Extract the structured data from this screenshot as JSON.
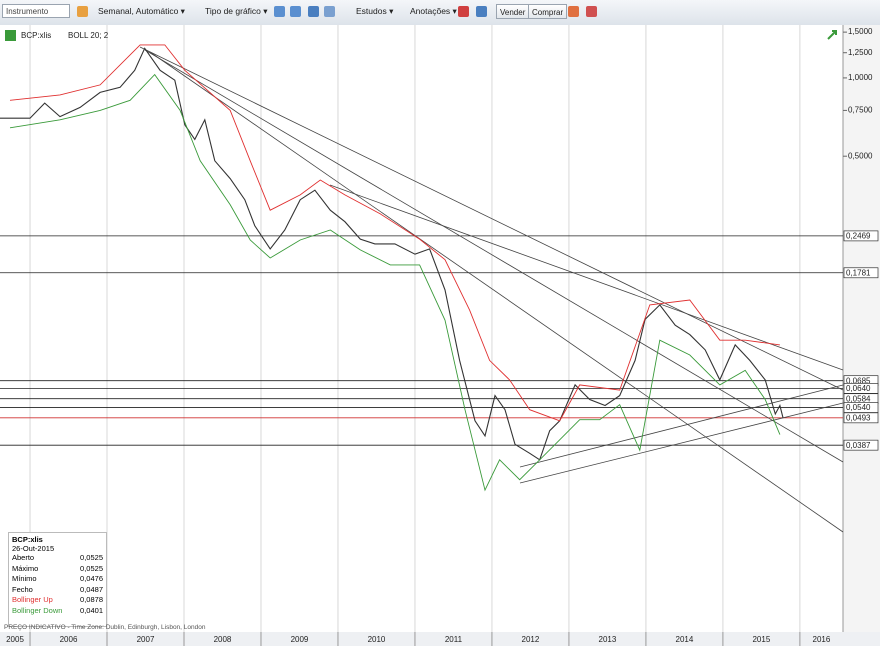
{
  "toolbar": {
    "instrument": "Instrumento",
    "interval": "Semanal, Automático ▾",
    "chart_type": "Tipo de gráfico ▾",
    "studies": "Estudos ▾",
    "annotations": "Anotações ▾",
    "sell": "Vender",
    "buy": "Comprar"
  },
  "chart_data": {
    "type": "line",
    "study": "BOLL 20; 2",
    "log_scale": true,
    "xlim": [
      2005.61,
      2016.56
    ],
    "ylim": [
      0.0074,
      1.67
    ],
    "xticks": [
      {
        "value": 2005,
        "label": "2005"
      },
      {
        "value": 2006,
        "label": "2006"
      },
      {
        "value": 2007,
        "label": "2007"
      },
      {
        "value": 2008,
        "label": "2008"
      },
      {
        "value": 2009,
        "label": "2009"
      },
      {
        "value": 2010,
        "label": "2010"
      },
      {
        "value": 2011,
        "label": "2011"
      },
      {
        "value": 2012,
        "label": "2012"
      },
      {
        "value": 2013,
        "label": "2013"
      },
      {
        "value": 2014,
        "label": "2014"
      },
      {
        "value": 2015,
        "label": "2015"
      },
      {
        "value": 2016,
        "label": "2016"
      }
    ],
    "yticks": [
      {
        "value": 1.5,
        "label": "1,5000"
      },
      {
        "value": 1.25,
        "label": "1,2500"
      },
      {
        "value": 1.0,
        "label": "1,0000"
      },
      {
        "value": 0.75,
        "label": "0,7500"
      },
      {
        "value": 0.5,
        "label": "0,5000"
      }
    ],
    "levels": [
      {
        "value": 0.2469,
        "label": "0,2469"
      },
      {
        "value": 0.1781,
        "label": "0,1781"
      },
      {
        "value": 0.0685,
        "label": "0,0685"
      },
      {
        "value": 0.064,
        "label": "0,0640"
      },
      {
        "value": 0.0584,
        "label": "0,0584"
      },
      {
        "value": 0.054,
        "label": "0,0540"
      },
      {
        "value": 0.0493,
        "label": "0,0493"
      },
      {
        "value": 0.0387,
        "label": "0,0387"
      }
    ],
    "current_level_color": "#d03030",
    "grid": true,
    "series": [
      {
        "name": "BCP:xlis",
        "color": "#333333",
        "x": [
          2005.61,
          2006.0,
          2006.19,
          2006.39,
          2006.65,
          2006.91,
          2007.17,
          2007.36,
          2007.49,
          2007.69,
          2007.88,
          2008.01,
          2008.14,
          2008.27,
          2008.4,
          2008.6,
          2008.79,
          2008.92,
          2009.12,
          2009.31,
          2009.51,
          2009.7,
          2009.9,
          2010.09,
          2010.29,
          2010.48,
          2010.74,
          2011.0,
          2011.19,
          2011.39,
          2011.58,
          2011.78,
          2011.91,
          2012.04,
          2012.17,
          2012.3,
          2012.49,
          2012.62,
          2012.75,
          2012.88,
          2013.08,
          2013.27,
          2013.47,
          2013.66,
          2013.86,
          2013.99,
          2014.18,
          2014.38,
          2014.57,
          2014.77,
          2014.96,
          2015.16,
          2015.35,
          2015.55,
          2015.68,
          2015.74,
          2015.78
        ],
        "values": [
          0.7,
          0.7,
          0.8,
          0.71,
          0.77,
          0.88,
          0.92,
          1.07,
          1.3,
          1.07,
          0.98,
          0.66,
          0.58,
          0.69,
          0.48,
          0.41,
          0.34,
          0.27,
          0.22,
          0.26,
          0.34,
          0.37,
          0.31,
          0.28,
          0.24,
          0.23,
          0.23,
          0.21,
          0.22,
          0.153,
          0.082,
          0.048,
          0.042,
          0.06,
          0.053,
          0.039,
          0.036,
          0.034,
          0.044,
          0.048,
          0.066,
          0.058,
          0.055,
          0.06,
          0.082,
          0.118,
          0.134,
          0.112,
          0.103,
          0.09,
          0.069,
          0.094,
          0.082,
          0.069,
          0.051,
          0.055,
          0.0493
        ]
      },
      {
        "name": "Bollinger Up",
        "color": "#e03030",
        "x": [
          2005.74,
          2006.39,
          2006.91,
          2007.43,
          2007.75,
          2008.01,
          2008.6,
          2008.86,
          2009.12,
          2009.51,
          2009.77,
          2010.09,
          2010.55,
          2011.06,
          2011.39,
          2011.71,
          2011.97,
          2012.23,
          2012.49,
          2012.88,
          2013.14,
          2013.66,
          2014.05,
          2014.57,
          2014.96,
          2015.29,
          2015.74
        ],
        "values": [
          0.82,
          0.86,
          0.94,
          1.34,
          1.34,
          1.07,
          0.75,
          0.48,
          0.31,
          0.355,
          0.405,
          0.355,
          0.3,
          0.24,
          0.2,
          0.128,
          0.082,
          0.069,
          0.053,
          0.048,
          0.066,
          0.063,
          0.134,
          0.14,
          0.098,
          0.098,
          0.094
        ]
      },
      {
        "name": "Bollinger Down",
        "color": "#3a9a3a",
        "x": [
          2005.74,
          2006.39,
          2006.91,
          2007.3,
          2007.62,
          2007.95,
          2008.21,
          2008.6,
          2008.86,
          2009.12,
          2009.51,
          2009.9,
          2010.29,
          2010.68,
          2011.06,
          2011.39,
          2011.65,
          2011.91,
          2012.1,
          2012.36,
          2012.62,
          2012.88,
          2013.14,
          2013.4,
          2013.66,
          2013.92,
          2014.18,
          2014.57,
          2014.96,
          2015.29,
          2015.55,
          2015.74
        ],
        "values": [
          0.643,
          0.69,
          0.75,
          0.82,
          1.03,
          0.75,
          0.48,
          0.325,
          0.238,
          0.203,
          0.238,
          0.26,
          0.218,
          0.191,
          0.191,
          0.117,
          0.053,
          0.026,
          0.034,
          0.0285,
          0.034,
          0.0406,
          0.0485,
          0.0485,
          0.0554,
          0.037,
          0.098,
          0.086,
          0.066,
          0.075,
          0.058,
          0.0425
        ]
      }
    ]
  },
  "info_box": {
    "date": "26-Out-2015",
    "rows": [
      {
        "label": "Aberto",
        "value": "0,0525"
      },
      {
        "label": "Máximo",
        "value": "0,0525"
      },
      {
        "label": "Mínimo",
        "value": "0,0476"
      },
      {
        "label": "Fecho",
        "value": "0,0487"
      }
    ],
    "band_values": [
      "0,0878",
      "0,0401"
    ]
  },
  "footer_note": "PREÇO INDICATIVO - Time Zone: Dublin, Edinburgh, Lisbon, London"
}
